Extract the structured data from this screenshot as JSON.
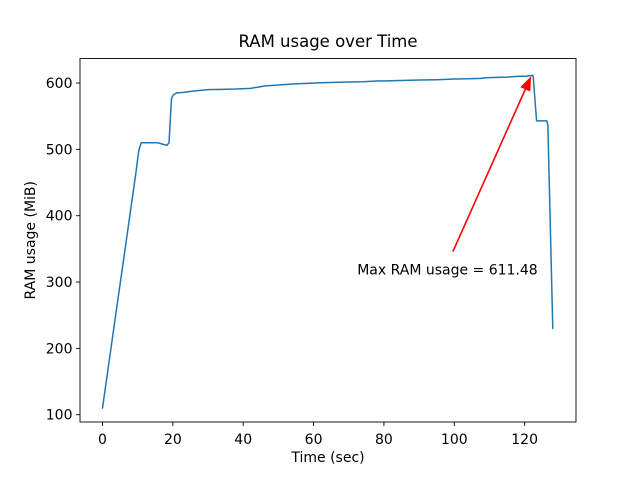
{
  "chart_data": {
    "type": "line",
    "title": "RAM usage over Time",
    "xlabel": "Time (sec)",
    "ylabel": "RAM usage (MiB)",
    "xlim": [
      -6.4,
      134.6
    ],
    "ylim": [
      89,
      637
    ],
    "xticks": [
      0,
      20,
      40,
      60,
      80,
      100,
      120
    ],
    "yticks": [
      100,
      200,
      300,
      400,
      500,
      600
    ],
    "grid": false,
    "legend": null,
    "series": [
      {
        "name": "RAM usage",
        "color": "#1f77b4",
        "x": [
          0,
          2,
          4,
          6,
          8,
          9.5,
          10.3,
          11,
          13,
          15.7,
          18.3,
          18.9,
          19.6,
          20.1,
          21,
          23,
          26,
          30,
          34,
          38,
          42,
          44.5,
          46,
          50,
          54,
          58,
          62,
          66,
          70,
          74,
          78,
          82,
          86,
          90,
          95,
          100,
          104,
          107.5,
          109,
          112,
          115,
          118,
          120.5,
          122.4,
          123.4,
          126.3,
          126.6,
          128
        ],
        "y": [
          110,
          185,
          260,
          334,
          409,
          465,
          498,
          510,
          510,
          510,
          506,
          510,
          576,
          582,
          585,
          586,
          588,
          590,
          590.5,
          591,
          592,
          594,
          595.5,
          597,
          598.5,
          599.5,
          600.5,
          601,
          601.5,
          602,
          603,
          603.5,
          604,
          604.5,
          605,
          606,
          606.5,
          607,
          608,
          608.5,
          609,
          610,
          610.5,
          611.48,
          543,
          543,
          537,
          230
        ]
      }
    ],
    "annotation": {
      "text": "Max RAM usage = 611.48",
      "color": "#ff0000",
      "max_value": 611.48,
      "xy": [
        122.4,
        611.48
      ],
      "text_pos": [
        72.4,
        311
      ],
      "arrow_tail": [
        99.6,
        346
      ],
      "arrow_tip": [
        121.7,
        608.5
      ]
    }
  }
}
